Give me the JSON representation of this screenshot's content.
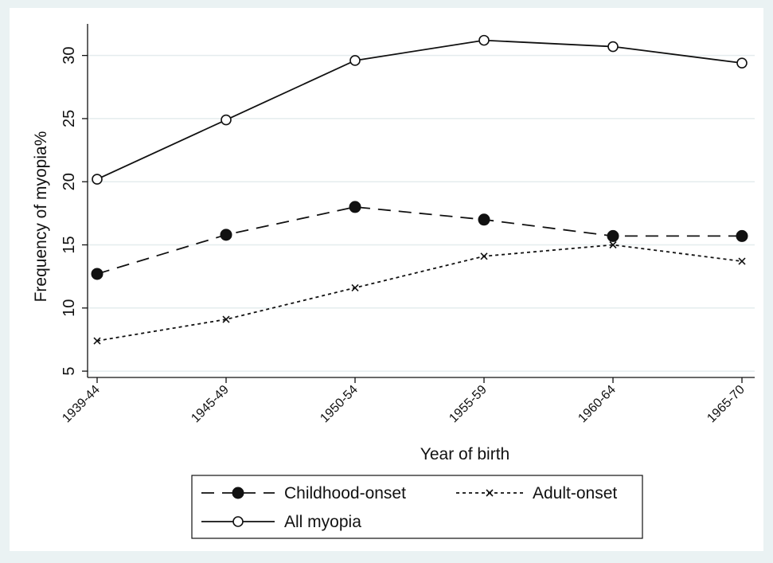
{
  "chart_data": {
    "type": "line",
    "title": "",
    "xlabel": "Year of birth",
    "ylabel": "Frequency of myopia%",
    "categories": [
      "1939-44",
      "1945-49",
      "1950-54",
      "1955-59",
      "1960-64",
      "1965-70"
    ],
    "ylim": [
      4.5,
      32.5
    ],
    "yticks": [
      5,
      10,
      15,
      20,
      25,
      30
    ],
    "grid": true,
    "legend_position": "bottom",
    "series": [
      {
        "name": "Childhood-onset",
        "values": [
          12.7,
          15.8,
          18.0,
          17.0,
          15.7,
          15.7
        ],
        "line_style": "dashed",
        "marker": "filled-circle"
      },
      {
        "name": "Adult-onset",
        "values": [
          7.4,
          9.1,
          11.6,
          14.1,
          15.0,
          13.7
        ],
        "line_style": "dotted",
        "marker": "x"
      },
      {
        "name": "All myopia",
        "values": [
          20.2,
          24.9,
          29.6,
          31.2,
          30.7,
          29.4
        ],
        "line_style": "solid",
        "marker": "hollow-circle"
      }
    ],
    "colors": {
      "background": "#eaf2f3",
      "plot_area": "#ffffff",
      "grid": "#e4ecee",
      "ink": "#111111"
    }
  }
}
